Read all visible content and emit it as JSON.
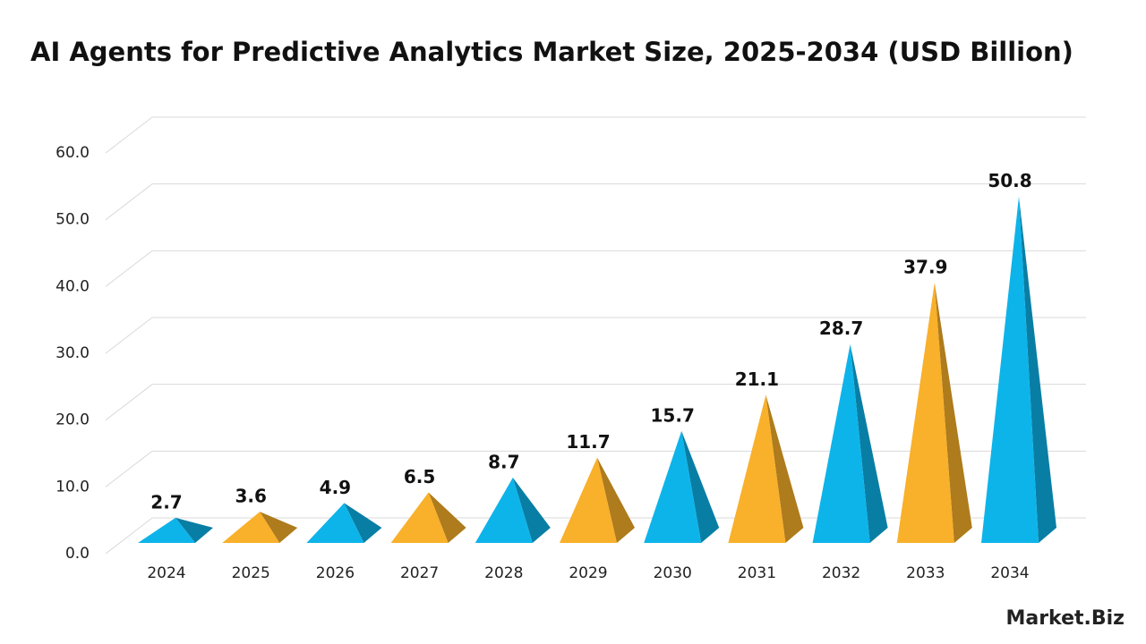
{
  "chart_data": {
    "type": "pyramid",
    "title": "AI Agents for Predictive Analytics Market Size, 2025-2034 (USD Billion)",
    "categories": [
      "2024",
      "2025",
      "2026",
      "2027",
      "2028",
      "2029",
      "2030",
      "2031",
      "2032",
      "2033",
      "2034"
    ],
    "values": [
      2.7,
      3.6,
      4.9,
      6.5,
      8.7,
      11.7,
      15.7,
      21.1,
      28.7,
      37.9,
      50.8
    ],
    "colors": [
      "#0db4ea",
      "#f9b02a"
    ],
    "ylim": [
      0,
      60
    ],
    "yticks": [
      {
        "value": 0,
        "label": "0.0"
      },
      {
        "value": 10,
        "label": "10.0"
      },
      {
        "value": 20,
        "label": "20.0"
      },
      {
        "value": 30,
        "label": "30.0"
      },
      {
        "value": 40,
        "label": "40.0"
      },
      {
        "value": 50,
        "label": "50.0"
      },
      {
        "value": 60,
        "label": "60.0"
      }
    ],
    "grid": true,
    "watermark": "Market.Biz"
  }
}
